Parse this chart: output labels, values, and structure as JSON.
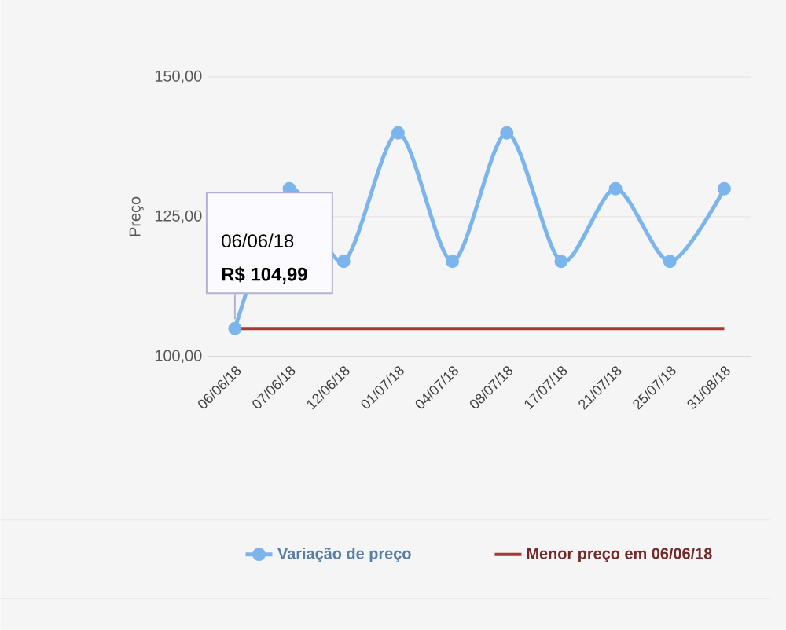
{
  "chart_data": {
    "type": "line",
    "ylabel": "Preço",
    "categories": [
      "06/06/18",
      "07/06/18",
      "12/06/18",
      "01/07/18",
      "04/07/18",
      "08/07/18",
      "17/07/18",
      "21/07/18",
      "25/07/18",
      "31/08/18"
    ],
    "series": [
      {
        "name": "Variação de preço",
        "color": "#7cb5ec",
        "marker": "circle",
        "values": [
          104.99,
          130,
          117,
          140,
          117,
          140,
          117,
          130,
          117,
          130
        ]
      },
      {
        "name": "Menor preço em 06/06/18",
        "color": "#a33a3a",
        "marker": "none",
        "values": [
          104.99,
          104.99,
          104.99,
          104.99,
          104.99,
          104.99,
          104.99,
          104.99,
          104.99,
          104.99
        ]
      }
    ],
    "ylim": [
      100,
      150
    ],
    "yticks": [
      {
        "value": 100,
        "label": "100,00"
      },
      {
        "value": 125,
        "label": "125,00"
      },
      {
        "value": 150,
        "label": "150,00"
      }
    ],
    "grid": "y",
    "legend": "bottom",
    "line_style": "solid",
    "annotations": [
      "06/06/18",
      "**R$ 104,99**"
    ]
  }
}
